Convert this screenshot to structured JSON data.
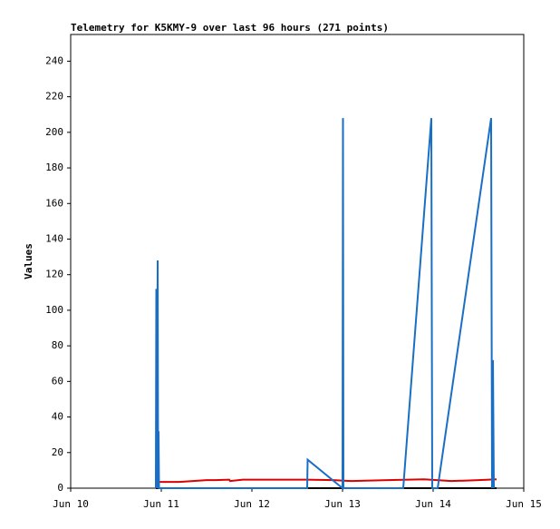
{
  "chart_data": {
    "type": "line",
    "title": "Telemetry for K5KMY-9 over last 96 hours (271 points)",
    "ylabel": "Values",
    "xlim": [
      10,
      15
    ],
    "xticks": [
      {
        "value": 10,
        "label": "Jun 10"
      },
      {
        "value": 11,
        "label": "Jun 11"
      },
      {
        "value": 12,
        "label": "Jun 12"
      },
      {
        "value": 13,
        "label": "Jun 13"
      },
      {
        "value": 14,
        "label": "Jun 14"
      },
      {
        "value": 15,
        "label": "Jun 15"
      }
    ],
    "ylim": [
      0,
      255
    ],
    "yticks": [
      0,
      20,
      40,
      60,
      80,
      100,
      120,
      140,
      160,
      180,
      200,
      220,
      240
    ],
    "grid": false,
    "series": [
      {
        "color": "#000000",
        "x": [
          10.94,
          14.7
        ],
        "values": [
          0,
          0
        ]
      },
      {
        "color": "#dd0000",
        "x": [
          10.98,
          11.2,
          11.5,
          11.6,
          11.75,
          11.76,
          11.9,
          12.1,
          12.6,
          12.9,
          13.1,
          13.5,
          13.9,
          14.2,
          14.5,
          14.7
        ],
        "values": [
          3.5,
          3.5,
          4.5,
          4.5,
          4.8,
          4.0,
          4.8,
          4.8,
          4.8,
          4.5,
          4.0,
          4.5,
          5.0,
          4.0,
          4.5,
          5.0
        ]
      },
      {
        "color": "#1a6fc4",
        "x": [
          10.94,
          10.945,
          10.95,
          10.96,
          10.965,
          10.97,
          10.975,
          10.98,
          12.61,
          12.615,
          13.0,
          13.005,
          13.01,
          13.67,
          13.98,
          13.99,
          14.05,
          14.64,
          14.65,
          14.66,
          14.67
        ],
        "values": [
          0,
          112,
          0,
          128,
          0,
          32,
          0,
          0,
          0,
          16,
          0,
          208,
          0,
          0,
          208,
          0,
          0,
          208,
          0,
          72,
          0
        ]
      }
    ]
  }
}
